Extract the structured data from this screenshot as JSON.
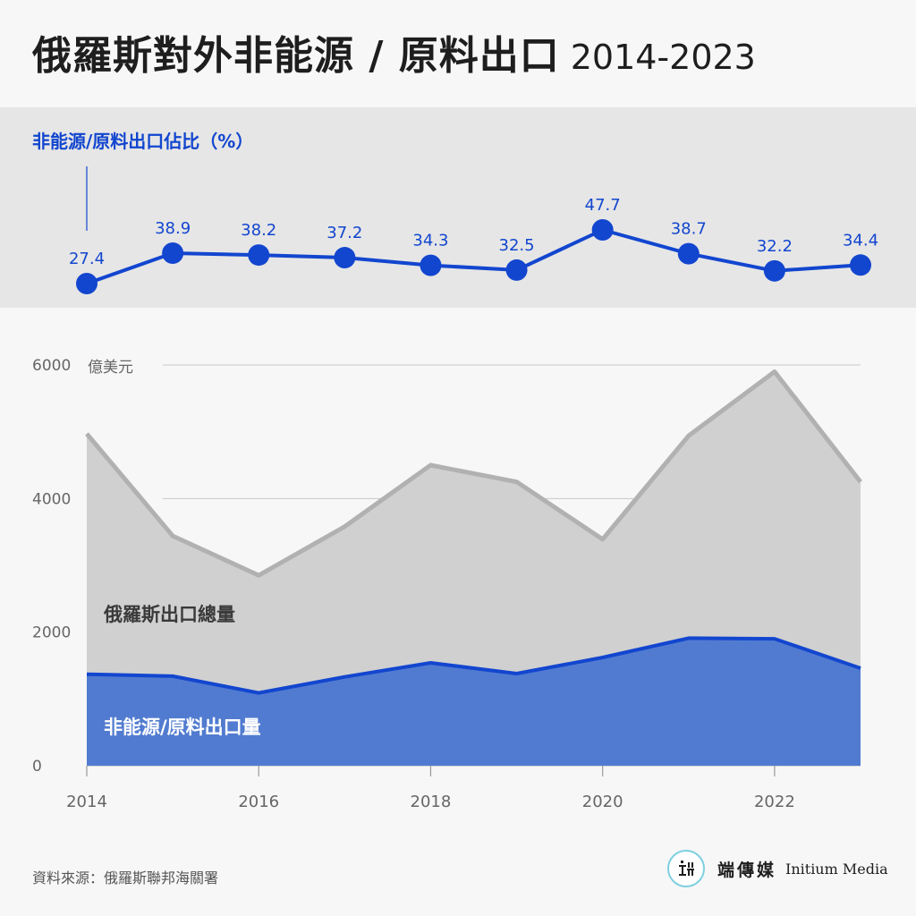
{
  "title": "俄羅斯對外非能源 / 原料出口",
  "title_years": "2014-2023",
  "source": "資料來源：俄羅斯聯邦海關署",
  "brand": {
    "name_zh": "端傳媒",
    "name_en": "Initium Media"
  },
  "colors": {
    "blue": "#1246cf",
    "blue_fill": "#517bd0",
    "gray_line": "#b1b1b1",
    "gray_fill": "#d0d0d0",
    "band": "#e6e6e6",
    "background": "#f7f7f7"
  },
  "chart_data": [
    {
      "type": "line",
      "title": "非能源/原料出口佔比（%）",
      "x": [
        2014,
        2015,
        2016,
        2017,
        2018,
        2019,
        2020,
        2021,
        2022,
        2023
      ],
      "series": [
        {
          "values": [
            27.4,
            38.9,
            38.2,
            37.2,
            34.3,
            32.5,
            47.7,
            38.7,
            32.2,
            34.4
          ],
          "data_labels": [
            "27.4",
            "38.9",
            "38.2",
            "37.2",
            "34.3",
            "32.5",
            "47.7",
            "38.7",
            "32.2",
            "34.4"
          ]
        }
      ],
      "ylim": [
        20,
        55
      ],
      "grid": false
    },
    {
      "type": "area",
      "x": [
        2014,
        2015,
        2016,
        2017,
        2018,
        2019,
        2020,
        2021,
        2022,
        2023
      ],
      "xticks": [
        "2014",
        "2016",
        "2018",
        "2020",
        "2022"
      ],
      "xtick_values": [
        2014,
        2016,
        2018,
        2020,
        2022
      ],
      "yticks": [
        "0",
        "2000",
        "4000",
        "6000"
      ],
      "ytick_values": [
        0,
        2000,
        4000,
        6000
      ],
      "yunit": "億美元",
      "ylim": [
        0,
        6000
      ],
      "grid": true,
      "series": [
        {
          "name": "俄羅斯出口總量",
          "values": [
            4970,
            3440,
            2850,
            3580,
            4500,
            4250,
            3390,
            4940,
            5900,
            4250
          ]
        },
        {
          "name": "非能源/原料出口量",
          "values": [
            1370,
            1340,
            1090,
            1330,
            1540,
            1380,
            1620,
            1910,
            1900,
            1460
          ]
        }
      ]
    }
  ]
}
